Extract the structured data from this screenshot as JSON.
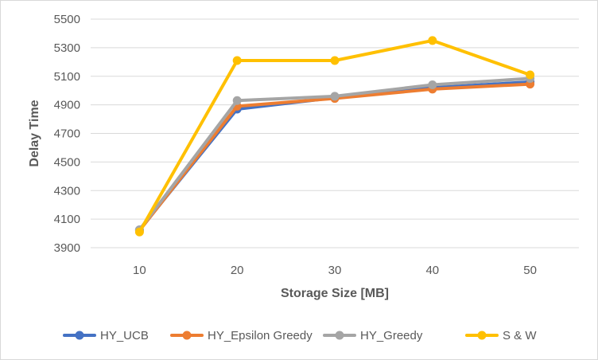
{
  "chart_data": {
    "type": "line",
    "title": "",
    "xlabel": "Storage Size [MB]",
    "ylabel": "Delay Time",
    "x": [
      "10",
      "20",
      "30",
      "40",
      "50"
    ],
    "ylim": [
      3900,
      5500
    ],
    "yticks": [
      3900,
      4100,
      4300,
      4500,
      4700,
      4900,
      5100,
      5300,
      5500
    ],
    "grid": true,
    "legend_position": "bottom",
    "series": [
      {
        "name": "HY_UCB",
        "color": "#4472c4",
        "values": [
          4025,
          4870,
          4950,
          5020,
          5060
        ]
      },
      {
        "name": "HY_Epsilon Greedy",
        "color": "#ed7d31",
        "values": [
          4020,
          4890,
          4945,
          5010,
          5045
        ]
      },
      {
        "name": "HY_Greedy",
        "color": "#a5a5a5",
        "values": [
          4025,
          4930,
          4960,
          5040,
          5085
        ]
      },
      {
        "name": "S & W",
        "color": "#ffc000",
        "values": [
          4010,
          5210,
          5210,
          5350,
          5110
        ]
      }
    ]
  }
}
